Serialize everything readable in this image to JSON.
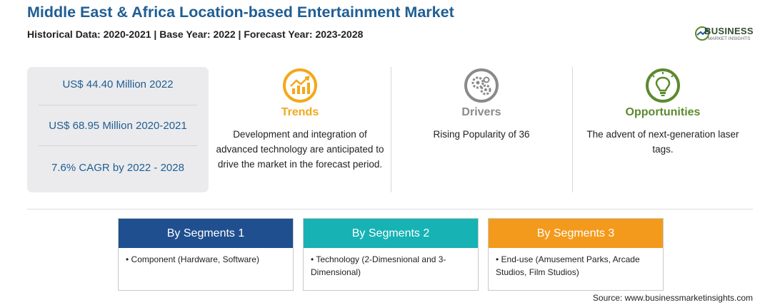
{
  "header": {
    "title": "Middle East & Africa Location-based Entertainment Market",
    "subtitle": "Historical Data: 2020-2021 | Base Year: 2022 | Forecast Year: 2023-2028"
  },
  "logo": {
    "name": "BUSINESS",
    "tagline": "MARKET INSIGHTS"
  },
  "stats": [
    "US$ 44.40 Million 2022",
    "US$ 68.95 Million 2020-2021",
    "7.6% CAGR by 2022 - 2028"
  ],
  "columns": [
    {
      "heading": "Trends",
      "icon": "trend-chart-icon",
      "color": "#f3a81a",
      "text": "Development and integration of advanced technology are anticipated to drive the market in the forecast period."
    },
    {
      "heading": "Drivers",
      "icon": "gears-icon",
      "color": "#8a8a8a",
      "text": "Rising Popularity of 36"
    },
    {
      "heading": "Opportunities",
      "icon": "lightbulb-icon",
      "color": "#5b8a2e",
      "text": "The advent of next-generation laser tags."
    }
  ],
  "segments": [
    {
      "title": "By Segments 1",
      "color": "#1f4f8f",
      "bullet": "•",
      "item": "Component (Hardware, Software)"
    },
    {
      "title": "By Segments 2",
      "color": "#16b2b4",
      "bullet": "•",
      "item": "Technology (2-Dimesnional and 3-Dimensional)"
    },
    {
      "title": "By Segments 3",
      "color": "#f39a1c",
      "bullet": "•",
      "item": "End-use (Amusement Parks, Arcade Studios, Film Studios)"
    }
  ],
  "source": "Source: www.businessmarketinsights.com"
}
